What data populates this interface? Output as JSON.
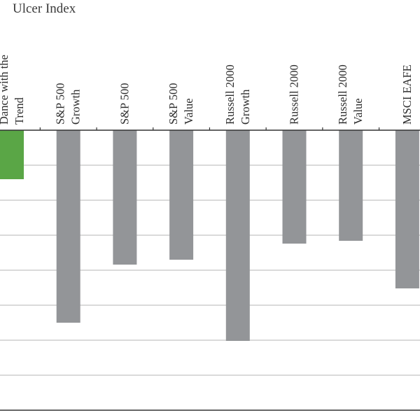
{
  "chart_data": {
    "type": "bar",
    "title": "Ulcer Index",
    "categories": [
      [
        "Dance with the",
        "Trend"
      ],
      [
        "S&P 500",
        "Growth"
      ],
      [
        "S&P 500"
      ],
      [
        "S&P 500",
        "Value"
      ],
      [
        "Russell 2000",
        "Growth"
      ],
      [
        "Russell 2000"
      ],
      [
        "Russell 2000",
        "Value"
      ],
      [
        "MSCI EAFE"
      ]
    ],
    "values": [
      7,
      27.5,
      19.2,
      18.5,
      30.1,
      16.2,
      15.8,
      22.6
    ],
    "bar_colors": [
      "#5aa646",
      "#939598",
      "#939598",
      "#939598",
      "#939598",
      "#939598",
      "#939598",
      "#939598"
    ],
    "ylim": [
      0,
      40
    ],
    "ytick_step": 5,
    "orientation": "bars hang downward from the top axis",
    "grid": true,
    "legend": "none"
  }
}
